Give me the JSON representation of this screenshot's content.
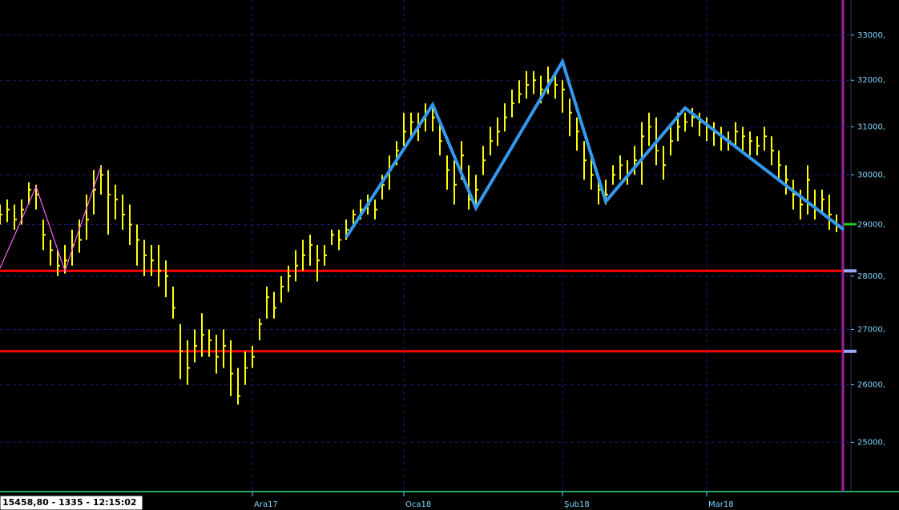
{
  "chart_data": {
    "type": "ohlc",
    "x": [
      0,
      1,
      2,
      3,
      4,
      5,
      6,
      7,
      8,
      9,
      10,
      11,
      12,
      13,
      14,
      15,
      16,
      17,
      18,
      19,
      20,
      21,
      22,
      23,
      24,
      25,
      26,
      27,
      28,
      29,
      30,
      31,
      32,
      33,
      34,
      35,
      36,
      37,
      38,
      39,
      40,
      41,
      42,
      43,
      44,
      45,
      46,
      47,
      48,
      49,
      50,
      51,
      52,
      53,
      54,
      55,
      56,
      57,
      58,
      59,
      60,
      61,
      62,
      63,
      64,
      65,
      66,
      67,
      68,
      69,
      70,
      71,
      72,
      73,
      74,
      75,
      76,
      77,
      78,
      79,
      80,
      81,
      82,
      83,
      84,
      85,
      86,
      87,
      88,
      89,
      90,
      91,
      92,
      93,
      94,
      95,
      96,
      97,
      98,
      99,
      100,
      101,
      102,
      103,
      104,
      105,
      106,
      107,
      108,
      109,
      110,
      111,
      112,
      113,
      114,
      115,
      116
    ],
    "high": [
      29400,
      29500,
      29400,
      29500,
      29850,
      29800,
      29100,
      28700,
      28500,
      28600,
      28900,
      29100,
      29600,
      30100,
      30200,
      30100,
      29800,
      29600,
      29400,
      29000,
      28700,
      28600,
      28600,
      28300,
      27800,
      27100,
      26800,
      27000,
      27300,
      27000,
      26900,
      27000,
      26800,
      26300,
      26600,
      26700,
      27200,
      27800,
      27700,
      28000,
      28200,
      28500,
      28700,
      28800,
      28600,
      28600,
      28900,
      28900,
      29100,
      29300,
      29500,
      29600,
      29500,
      30000,
      30400,
      30700,
      31300,
      31300,
      31300,
      31500,
      31400,
      31100,
      30400,
      30300,
      30700,
      30200,
      30000,
      30600,
      31000,
      31200,
      31500,
      31800,
      32000,
      32200,
      32200,
      32100,
      32300,
      32100,
      32000,
      31600,
      31200,
      30700,
      30400,
      30000,
      29900,
      30200,
      30400,
      30300,
      30600,
      31100,
      31300,
      31200,
      30600,
      31000,
      31300,
      31300,
      31400,
      31300,
      31200,
      31100,
      31000,
      30900,
      31100,
      31000,
      30900,
      30800,
      31000,
      30800,
      30500,
      30200,
      29900,
      29700,
      30200,
      29700,
      29700,
      29600,
      29200
    ],
    "low": [
      29000,
      29050,
      28900,
      29000,
      29400,
      29300,
      28500,
      28200,
      28000,
      28050,
      28200,
      28450,
      28700,
      29200,
      29600,
      28800,
      29100,
      28900,
      28600,
      28200,
      28000,
      28000,
      27800,
      27600,
      27200,
      26100,
      26000,
      26400,
      26500,
      26500,
      26200,
      26300,
      25800,
      25650,
      26000,
      26300,
      26800,
      27200,
      27200,
      27500,
      27700,
      27900,
      28100,
      28200,
      27900,
      28200,
      28600,
      28500,
      28700,
      29000,
      29100,
      29200,
      29100,
      29500,
      29700,
      30200,
      30600,
      30800,
      30700,
      30900,
      30900,
      30400,
      29700,
      29400,
      29900,
      29300,
      29400,
      30000,
      30400,
      30600,
      30900,
      31200,
      31500,
      31600,
      31700,
      31500,
      31700,
      31600,
      31300,
      30800,
      30500,
      29900,
      29700,
      29400,
      29400,
      29800,
      29900,
      29800,
      30000,
      29800,
      30600,
      30200,
      29900,
      30400,
      30700,
      30900,
      31000,
      30800,
      30700,
      30600,
      30500,
      30500,
      30600,
      30500,
      30400,
      30400,
      30500,
      30200,
      29900,
      29600,
      29300,
      29100,
      29200,
      29100,
      29200,
      28900,
      28850
    ],
    "close": [
      29200,
      29300,
      29100,
      29300,
      29700,
      29600,
      28800,
      28500,
      28200,
      28300,
      28600,
      28700,
      29100,
      29700,
      30000,
      29600,
      29500,
      29200,
      29000,
      28700,
      28400,
      28300,
      28100,
      28000,
      27400,
      26600,
      26300,
      26700,
      26900,
      26800,
      26500,
      26700,
      26200,
      25800,
      26300,
      26500,
      27100,
      27600,
      27400,
      27800,
      28000,
      28200,
      28400,
      28600,
      28300,
      28400,
      28800,
      28700,
      28900,
      29200,
      29300,
      29400,
      29300,
      29800,
      30100,
      30500,
      30900,
      31100,
      31000,
      31300,
      31200,
      30700,
      30100,
      29800,
      30400,
      29500,
      29700,
      30300,
      30700,
      30900,
      31200,
      31500,
      31700,
      31900,
      32000,
      31800,
      32000,
      31900,
      31800,
      31300,
      30900,
      30300,
      30000,
      29700,
      29600,
      30000,
      30200,
      30000,
      30300,
      30800,
      31000,
      30500,
      30200,
      30700,
      31000,
      31100,
      31200,
      31100,
      31000,
      30900,
      30800,
      30700,
      30900,
      30800,
      30700,
      30600,
      30800,
      30500,
      30200,
      29900,
      29600,
      29400,
      29900,
      29300,
      29500,
      29200,
      29000
    ],
    "color": "#ffff00",
    "xlim": [
      0,
      118
    ],
    "xticks": [
      {
        "value": 35,
        "label": "Ara17"
      },
      {
        "value": 56,
        "label": "Oca18"
      },
      {
        "value": 78,
        "label": "Şub18"
      },
      {
        "value": 98,
        "label": "Mar18"
      }
    ],
    "ylim": [
      24200,
      33800
    ],
    "log_scale": true,
    "grid": true,
    "yticks": [
      {
        "value": 25000,
        "label": "25000,"
      },
      {
        "value": 26000,
        "label": "26000,"
      },
      {
        "value": 27000,
        "label": "27000,"
      },
      {
        "value": 28000,
        "label": "28000,"
      },
      {
        "value": 29000,
        "label": "29000,"
      },
      {
        "value": 30000,
        "label": "30000,"
      },
      {
        "value": 31000,
        "label": "31000,"
      },
      {
        "value": 32000,
        "label": "32000,"
      },
      {
        "value": 33000,
        "label": "33000,"
      }
    ],
    "hlines": [
      {
        "value": 28100,
        "color": "#ff0000"
      },
      {
        "value": 26600,
        "color": "#ff0000"
      }
    ],
    "overlays": [
      {
        "color": "#ff66ff",
        "x": [
          0,
          5,
          9,
          14
        ],
        "values": [
          28150,
          29760,
          28100,
          30170
        ]
      },
      {
        "color": "#3399ee",
        "x": [
          48,
          60,
          66,
          78,
          84,
          95,
          117
        ],
        "values": [
          28750,
          31470,
          29330,
          32410,
          29460,
          31400,
          28900
        ]
      }
    ],
    "status": "15458,80 - 1335 - 12:15:02"
  }
}
